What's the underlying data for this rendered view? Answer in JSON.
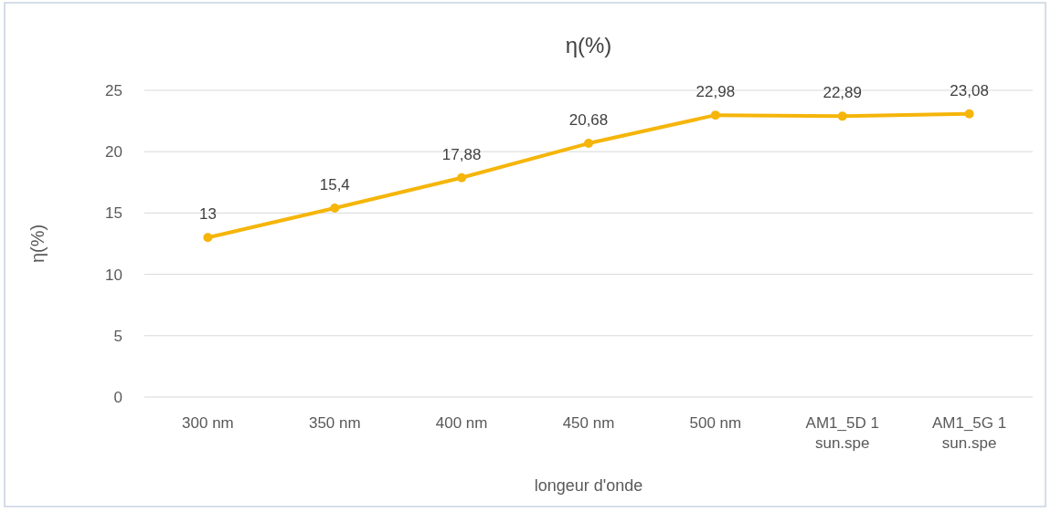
{
  "chart_data": {
    "type": "line",
    "title": "η(%)",
    "xlabel": "longeur d'onde",
    "ylabel": "η(%)",
    "categories": [
      "300 nm",
      "350 nm",
      "400 nm",
      "450 nm",
      "500 nm",
      "AM1_5D 1 sun.spe",
      "AM1_5G 1 sun.spe"
    ],
    "series": [
      {
        "color": "#f5b50a",
        "values": [
          13,
          15.4,
          17.88,
          20.68,
          22.98,
          22.89,
          23.08
        ],
        "value_labels": [
          "13",
          "15,4",
          "17,88",
          "20,68",
          "22,98",
          "22,89",
          "23,08"
        ]
      }
    ],
    "ylim": [
      0,
      25
    ],
    "yticks": [
      0,
      5,
      10,
      15,
      20,
      25
    ],
    "grid": "y",
    "marker": "circle",
    "line_style": "solid"
  }
}
